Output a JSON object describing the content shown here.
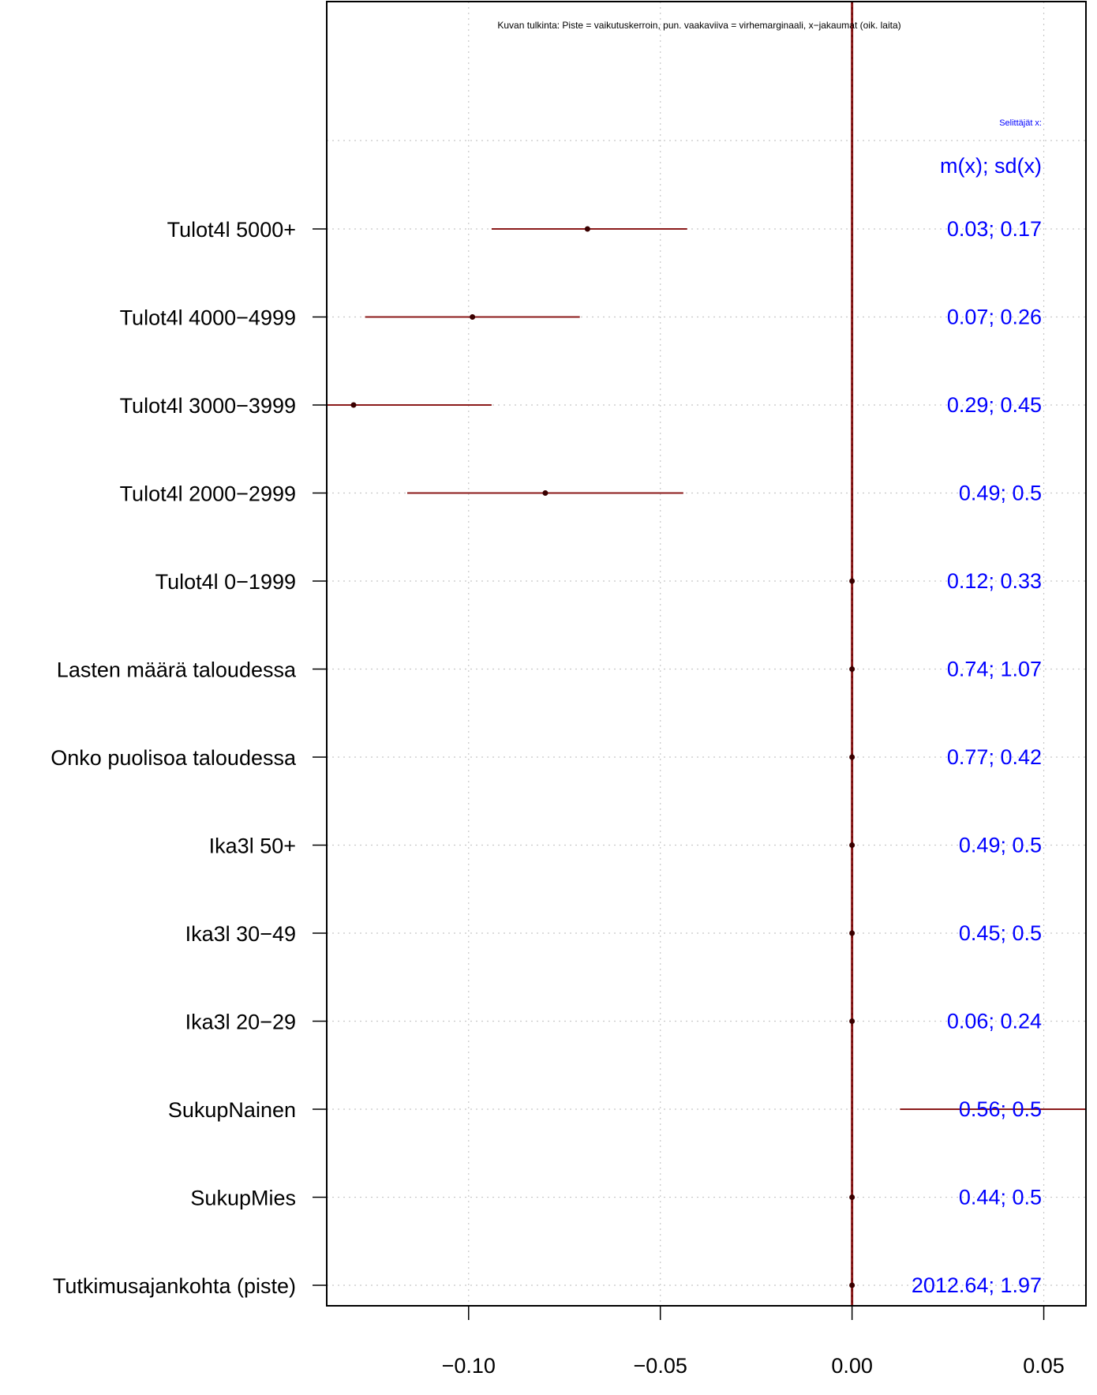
{
  "chart_data": {
    "type": "scatter",
    "note": "Kuvan tulkinta: Piste = vaikutuskerroin, pun. vaakaviiva = virhemarginaali, x−jakaumat (oik. laita)",
    "stats_title": "Selittäjät x:",
    "stats_header": "m(x); sd(x)",
    "xlim": [
      -0.137,
      0.061
    ],
    "x_ticks": [
      -0.1,
      -0.05,
      0.0,
      0.05
    ],
    "x_tick_labels": [
      "−0.10",
      "−0.05",
      "0.00",
      "0.05"
    ],
    "reference_line": 0.0,
    "grid": true,
    "point_color": "#3a0000",
    "ci_color": "#8b1a1a",
    "stat_color": "#0000ff",
    "rows": [
      {
        "label": "Tulot4l 5000+",
        "estimate": -0.069,
        "lower": -0.094,
        "upper": -0.043,
        "stat": "0.03; 0.17"
      },
      {
        "label": "Tulot4l 4000−4999",
        "estimate": -0.099,
        "lower": -0.127,
        "upper": -0.071,
        "stat": "0.07; 0.26"
      },
      {
        "label": "Tulot4l 3000−3999",
        "estimate": -0.13,
        "lower": -0.137,
        "upper": -0.094,
        "stat": "0.29; 0.45"
      },
      {
        "label": "Tulot4l 2000−2999",
        "estimate": -0.08,
        "lower": -0.116,
        "upper": -0.044,
        "stat": "0.49; 0.5"
      },
      {
        "label": "Tulot4l 0−1999",
        "estimate": 0.0,
        "lower": 0.0,
        "upper": 0.0,
        "stat": "0.12; 0.33"
      },
      {
        "label": "Lasten määrä taloudessa",
        "estimate": 0.0,
        "lower": 0.0,
        "upper": 0.0,
        "stat": "0.74; 1.07"
      },
      {
        "label": "Onko puolisoa taloudessa",
        "estimate": 0.0,
        "lower": 0.0,
        "upper": 0.0,
        "stat": "0.77; 0.42"
      },
      {
        "label": "Ika3l 50+",
        "estimate": 0.0,
        "lower": 0.0,
        "upper": 0.0,
        "stat": "0.49; 0.5"
      },
      {
        "label": "Ika3l 30−49",
        "estimate": 0.0,
        "lower": 0.0,
        "upper": 0.0,
        "stat": "0.45; 0.5"
      },
      {
        "label": "Ika3l 20−29",
        "estimate": 0.0,
        "lower": 0.0,
        "upper": 0.0,
        "stat": "0.06; 0.24"
      },
      {
        "label": "SukupNainen",
        "estimate": null,
        "lower": 0.0125,
        "upper": 0.061,
        "stat": "0.56; 0.5"
      },
      {
        "label": "SukupMies",
        "estimate": 0.0,
        "lower": 0.0,
        "upper": 0.0,
        "stat": "0.44; 0.5"
      },
      {
        "label": "Tutkimusajankohta (piste)",
        "estimate": 0.0,
        "lower": 0.0,
        "upper": 0.0,
        "stat": "2012.64; 1.97"
      }
    ]
  }
}
